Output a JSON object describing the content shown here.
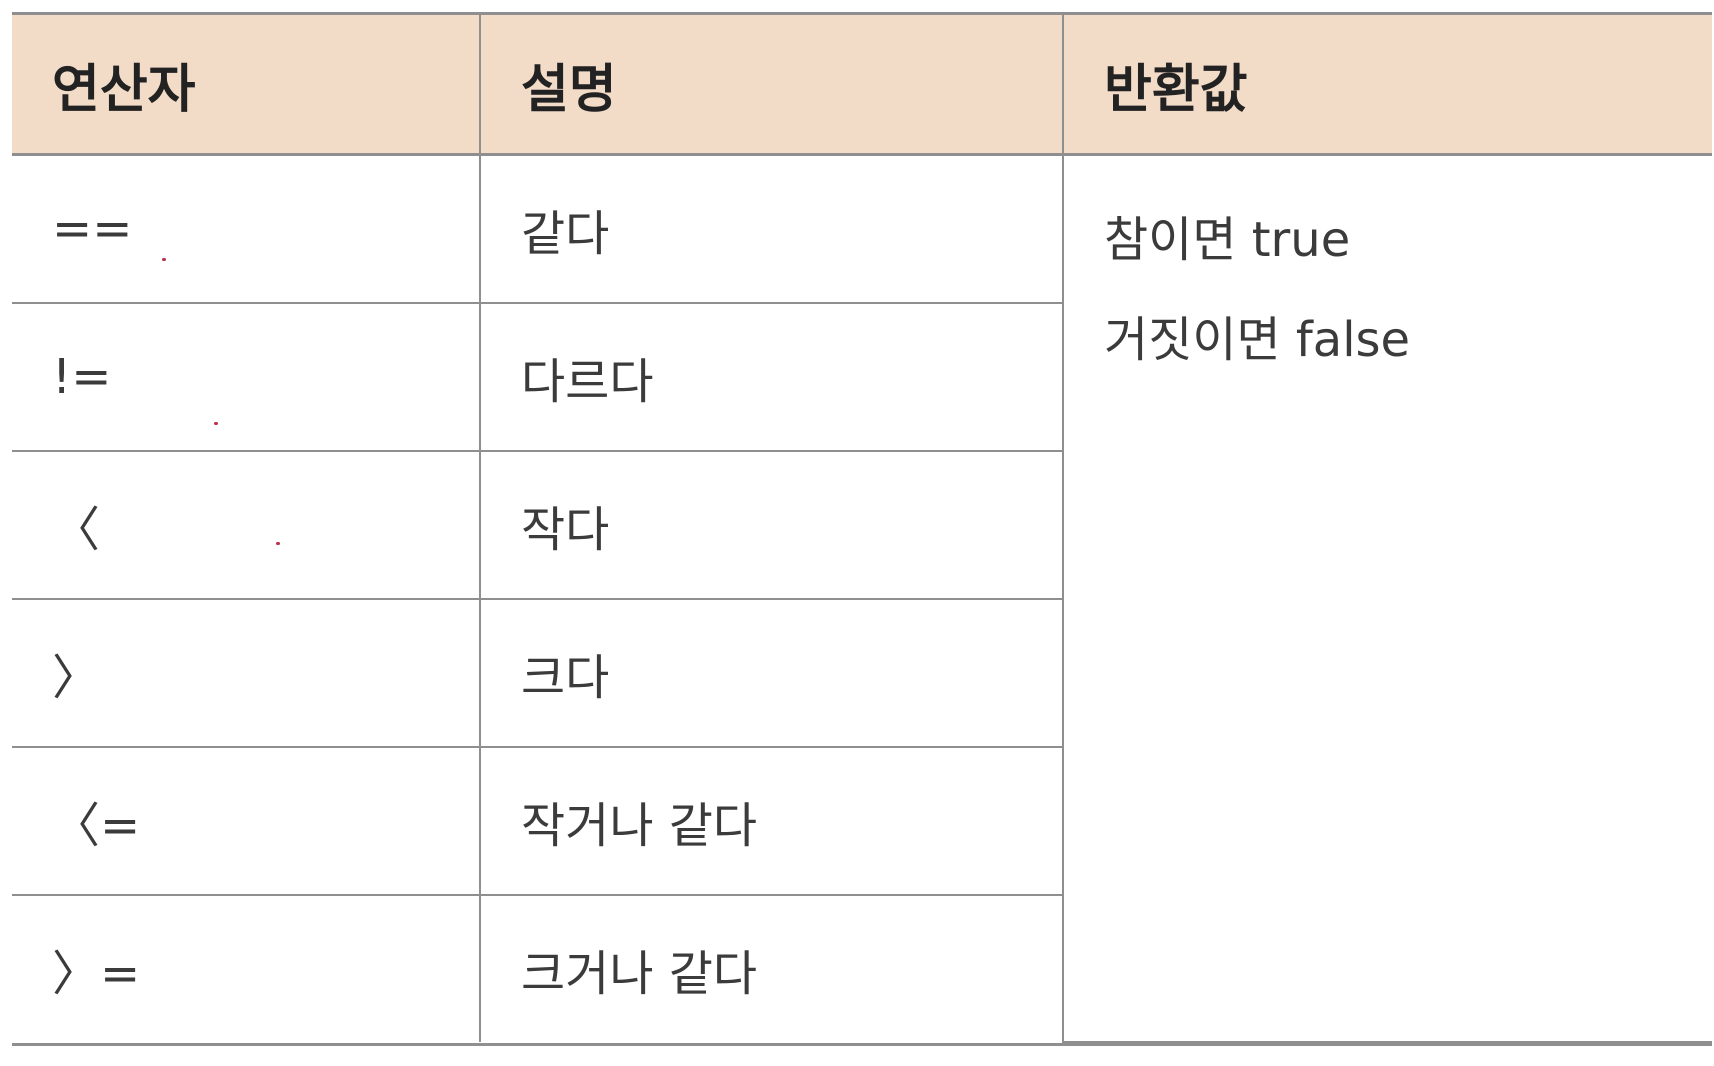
{
  "headers": [
    "연산자",
    "설명",
    "반환값"
  ],
  "rows": [
    {
      "operator": "==",
      "description": "같다"
    },
    {
      "operator": "!=",
      "description": "다르다"
    },
    {
      "operator": "〈",
      "description": "작다"
    },
    {
      "operator": "〉",
      "description": "크다"
    },
    {
      "operator": "〈=",
      "description": "작거나 같다"
    },
    {
      "operator": "〉=",
      "description": "크거나 같다"
    }
  ],
  "return_value": [
    "참이면 true",
    "거짓이면 false"
  ],
  "colors": {
    "header_background": "#f2dcc8",
    "border": "#8f8f8f",
    "text": "#3b3b3b",
    "stray_mark": "#c0304a"
  }
}
